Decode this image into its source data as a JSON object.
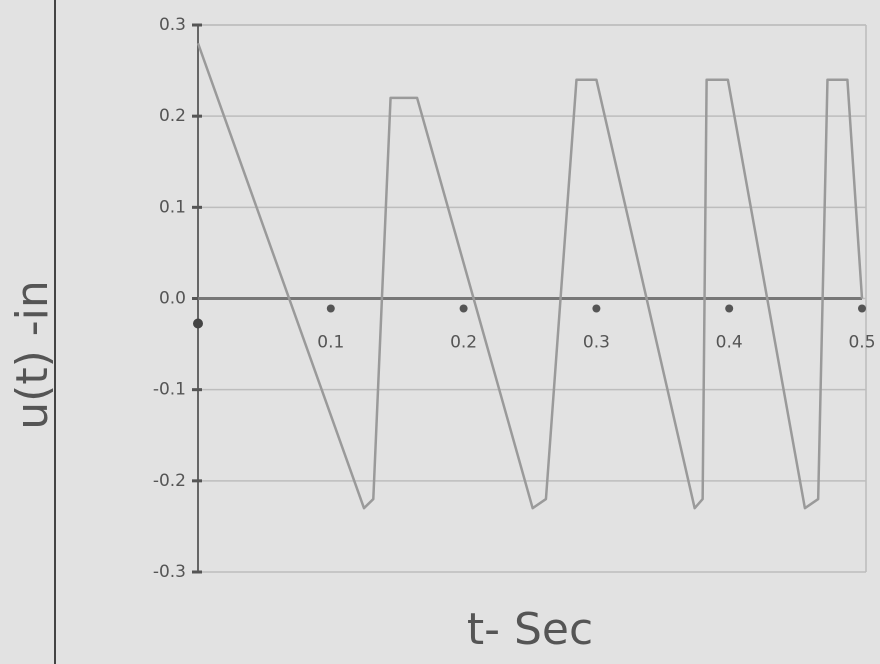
{
  "chart_data": {
    "type": "line",
    "y_label": "u(t) -in",
    "x_label": "t- Sec",
    "x": [
      0,
      0.125,
      0.132,
      0.145,
      0.165,
      0.252,
      0.262,
      0.285,
      0.3,
      0.374,
      0.38,
      0.383,
      0.399,
      0.457,
      0.467,
      0.474,
      0.489,
      0.5
    ],
    "values": [
      0.28,
      -0.23,
      -0.22,
      0.22,
      0.22,
      -0.23,
      -0.22,
      0.24,
      0.24,
      -0.23,
      -0.22,
      0.24,
      0.24,
      -0.23,
      -0.22,
      0.24,
      0.24,
      0.0
    ],
    "color": "#9a9a9a",
    "xlim": [
      0,
      0.5
    ],
    "xticks": [
      0.1,
      0.2,
      0.3,
      0.4,
      0.5
    ],
    "ylim": [
      -0.3,
      0.3
    ],
    "yticks": [
      0.3,
      0.2,
      0.1,
      {
        "value": 0,
        "label": "0.0"
      },
      -0.1,
      -0.2,
      -0.3
    ],
    "grid": true
  }
}
